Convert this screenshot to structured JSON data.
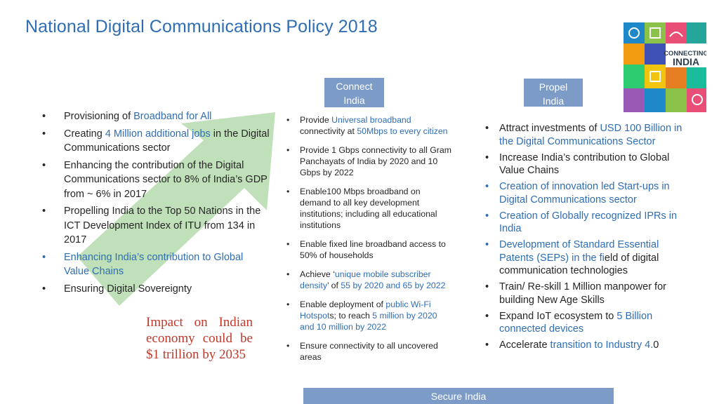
{
  "title": "National Digital Communications Policy 2018",
  "tags": {
    "connect": [
      "Connect",
      "India"
    ],
    "propel": [
      "Propel",
      "India"
    ],
    "secure": "Secure India"
  },
  "logo": {
    "line1": "CONNECTING",
    "line2": "INDIA"
  },
  "left": [
    {
      "pre": "Provisioning of ",
      "hl": "Broadband for All",
      "post": ""
    },
    {
      "pre": "Creating ",
      "hl": "4 Million additional jobs",
      "post": " in the Digital Communications sector"
    },
    {
      "pre": "Enhancing the  contribution of the Digital Communications sector to 8% of India’s GDP from ~ 6% in 2017",
      "hl": "",
      "post": ""
    },
    {
      "pre": "Propelling India to the Top 50 Nations in the ICT Development Index of ITU from 134 in 2017",
      "hl": "",
      "post": ""
    },
    {
      "pre": "",
      "hl": "Enhancing India’s contribution to Global Value Chains",
      "post": ""
    },
    {
      "pre": "Ensuring Digital Sovereignty",
      "hl": "",
      "post": ""
    }
  ],
  "impact": "Impact on Indian economy could be $1 trillion by 2035",
  "middle": [
    {
      "p1": "Provide ",
      "h1": "Universal broadband",
      "p2": " connectivity at ",
      "h2": "50Mbps to every citizen",
      "p3": ""
    },
    {
      "p1": "Provide 1 Gbps connectivity to all Gram Panchayats of India by 2020 and 10 Gbps by 2022",
      "h1": "",
      "p2": "",
      "h2": "",
      "p3": ""
    },
    {
      "p1": "Enable100 Mbps broadband on demand to all key development institutions; including all educational institutions",
      "h1": "",
      "p2": "",
      "h2": "",
      "p3": ""
    },
    {
      "p1": "Enable fixed line broadband access to 50% of households",
      "h1": "",
      "p2": "",
      "h2": "",
      "p3": ""
    },
    {
      "p1": "Achieve ‘",
      "h1": "unique mobile subscriber density",
      "p2": "’ of ",
      "h2": "55 by 2020 and 65 by 2022",
      "p3": ""
    },
    {
      "p1": "Enable deployment of ",
      "h1": "public Wi-Fi Hotspot",
      "p2": "s; to reach ",
      "h2": "5 million by 2020 and 10 million by 2022",
      "p3": ""
    },
    {
      "p1": "Ensure connectivity to all uncovered areas",
      "h1": "",
      "p2": "",
      "h2": "",
      "p3": ""
    }
  ],
  "right": [
    {
      "pre": "Attract investments of ",
      "hl": "USD 100 Billion in the Digital Communications Sector",
      "post": ""
    },
    {
      "pre": "Increase India’s contribution to Global Value Chains",
      "hl": "",
      "post": ""
    },
    {
      "pre": "",
      "hl": "Creation of innovation led Start-ups in Digital Communications sector",
      "post": ""
    },
    {
      "pre": "",
      "hl": "Creation of Globally recognized IPRs in India",
      "post": ""
    },
    {
      "pre": "",
      "hl": "Development of Standard Essential Patents (SEPs) in the fi",
      "post": "eld of digital communication technologies"
    },
    {
      "pre": "Train/ Re-skill 1 Million manpower for building New Age Skills",
      "hl": "",
      "post": ""
    },
    {
      "pre": "Expand IoT ecosystem to ",
      "hl": "5 Billion connected devices",
      "post": ""
    },
    {
      "pre": "Accelerate ",
      "hl": "transition to Industry 4.",
      "post": "0"
    }
  ]
}
